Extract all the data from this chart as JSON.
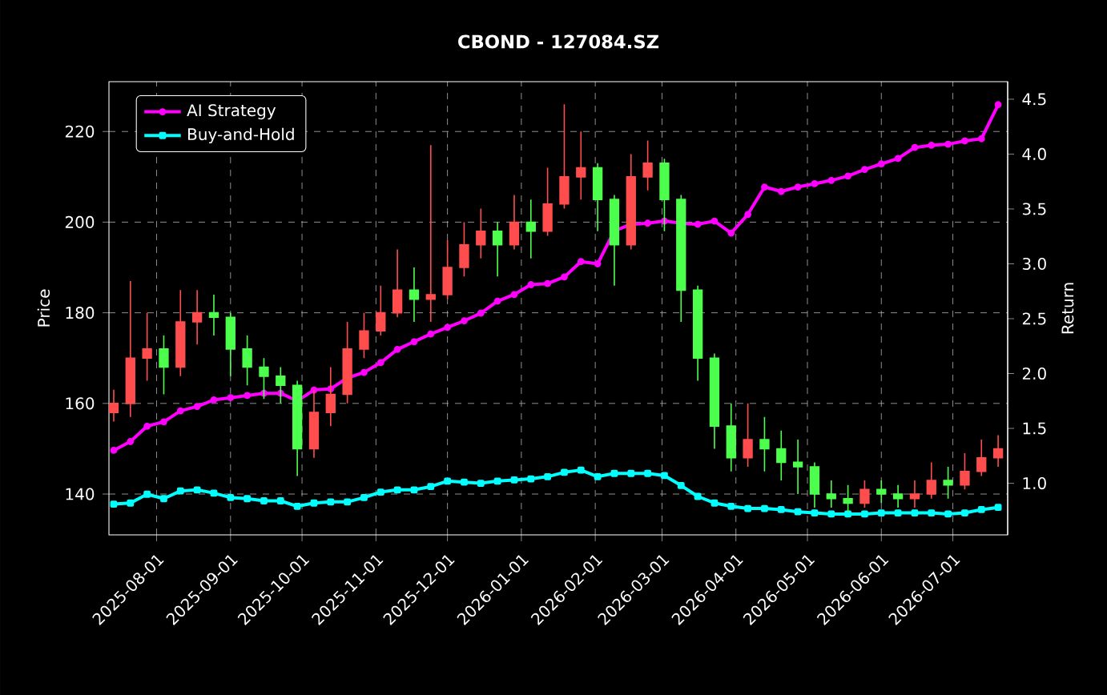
{
  "chart_data": {
    "type": "candlestick",
    "title": "CBOND - 127084.SZ",
    "ylabel": "Price",
    "y2label": "Return",
    "x": [
      "2025-07-14",
      "2025-07-21",
      "2025-07-28",
      "2025-08-04",
      "2025-08-11",
      "2025-08-18",
      "2025-08-25",
      "2025-09-01",
      "2025-09-08",
      "2025-09-15",
      "2025-09-22",
      "2025-09-29",
      "2025-10-06",
      "2025-10-13",
      "2025-10-20",
      "2025-10-27",
      "2025-11-03",
      "2025-11-10",
      "2025-11-17",
      "2025-11-24",
      "2025-12-01",
      "2025-12-08",
      "2025-12-15",
      "2025-12-22",
      "2025-12-29",
      "2026-01-05",
      "2026-01-12",
      "2026-01-19",
      "2026-01-26",
      "2026-02-02",
      "2026-02-09",
      "2026-02-16",
      "2026-02-23",
      "2026-03-02",
      "2026-03-09",
      "2026-03-16",
      "2026-03-23",
      "2026-03-30",
      "2026-04-06",
      "2026-04-13",
      "2026-04-20",
      "2026-04-27",
      "2026-05-04",
      "2026-05-11",
      "2026-05-18",
      "2026-05-25",
      "2026-06-01",
      "2026-06-08",
      "2026-06-15",
      "2026-06-22",
      "2026-06-29",
      "2026-07-06",
      "2026-07-13",
      "2026-07-20"
    ],
    "ohlc": [
      [
        158,
        163,
        156,
        160
      ],
      [
        160,
        187,
        157,
        170
      ],
      [
        170,
        180,
        165,
        172
      ],
      [
        172,
        175,
        162,
        168
      ],
      [
        168,
        185,
        166,
        178
      ],
      [
        178,
        185,
        173,
        180
      ],
      [
        180,
        184,
        175,
        179
      ],
      [
        179,
        180,
        166,
        172
      ],
      [
        172,
        175,
        164,
        168
      ],
      [
        168,
        170,
        161,
        166
      ],
      [
        166,
        168,
        160,
        164
      ],
      [
        164,
        165,
        144,
        150
      ],
      [
        150,
        163,
        148,
        158
      ],
      [
        158,
        168,
        155,
        162
      ],
      [
        162,
        178,
        160,
        172
      ],
      [
        172,
        180,
        170,
        176
      ],
      [
        176,
        186,
        175,
        180
      ],
      [
        180,
        194,
        179,
        185
      ],
      [
        185,
        190,
        178,
        183
      ],
      [
        183,
        217,
        178,
        184
      ],
      [
        184,
        196,
        183,
        190
      ],
      [
        190,
        200,
        188,
        195
      ],
      [
        195,
        203,
        192,
        198
      ],
      [
        198,
        200,
        188,
        195
      ],
      [
        195,
        206,
        194,
        200
      ],
      [
        200,
        205,
        192,
        198
      ],
      [
        198,
        212,
        197,
        204
      ],
      [
        204,
        226,
        203,
        210
      ],
      [
        210,
        220,
        205,
        212
      ],
      [
        212,
        213,
        198,
        205
      ],
      [
        205,
        206,
        186,
        195
      ],
      [
        195,
        215,
        194,
        210
      ],
      [
        210,
        218,
        207,
        213
      ],
      [
        213,
        214,
        198,
        205
      ],
      [
        205,
        206,
        178,
        185
      ],
      [
        185,
        186,
        165,
        170
      ],
      [
        170,
        171,
        150,
        155
      ],
      [
        155,
        160,
        145,
        148
      ],
      [
        148,
        160,
        146,
        152
      ],
      [
        152,
        157,
        145,
        150
      ],
      [
        150,
        154,
        143,
        147
      ],
      [
        147,
        152,
        140,
        146
      ],
      [
        146,
        147,
        137,
        140
      ],
      [
        140,
        143,
        137,
        139
      ],
      [
        139,
        142,
        136,
        138
      ],
      [
        138,
        143,
        137,
        141
      ],
      [
        141,
        143,
        138,
        140
      ],
      [
        140,
        142,
        137,
        139
      ],
      [
        139,
        143,
        137,
        140
      ],
      [
        140,
        147,
        139,
        143
      ],
      [
        143,
        146,
        139,
        142
      ],
      [
        142,
        149,
        141,
        145
      ],
      [
        145,
        152,
        144,
        148
      ],
      [
        148,
        153,
        146,
        150
      ]
    ],
    "series": [
      {
        "name": "AI Strategy",
        "type": "line",
        "axis": "y2",
        "color": "#ff00ff",
        "marker": "circle",
        "values": [
          1.3,
          1.38,
          1.52,
          1.56,
          1.66,
          1.7,
          1.76,
          1.78,
          1.8,
          1.82,
          1.82,
          1.75,
          1.85,
          1.86,
          1.96,
          2.01,
          2.1,
          2.22,
          2.29,
          2.36,
          2.42,
          2.48,
          2.55,
          2.66,
          2.72,
          2.81,
          2.82,
          2.88,
          3.02,
          3.0,
          3.3,
          3.36,
          3.37,
          3.39,
          3.37,
          3.36,
          3.39,
          3.28,
          3.45,
          3.7,
          3.66,
          3.7,
          3.73,
          3.76,
          3.8,
          3.86,
          3.91,
          3.96,
          4.06,
          4.08,
          4.09,
          4.12,
          4.14,
          4.45
        ]
      },
      {
        "name": "Buy-and-Hold",
        "type": "line",
        "axis": "y2",
        "color": "#00ffff",
        "marker": "square",
        "values": [
          0.81,
          0.82,
          0.9,
          0.86,
          0.93,
          0.94,
          0.91,
          0.87,
          0.86,
          0.84,
          0.84,
          0.79,
          0.82,
          0.83,
          0.83,
          0.87,
          0.92,
          0.94,
          0.94,
          0.97,
          1.02,
          1.01,
          1.0,
          1.02,
          1.03,
          1.04,
          1.06,
          1.1,
          1.12,
          1.06,
          1.09,
          1.09,
          1.09,
          1.07,
          0.98,
          0.88,
          0.82,
          0.79,
          0.77,
          0.77,
          0.76,
          0.74,
          0.73,
          0.72,
          0.72,
          0.72,
          0.73,
          0.73,
          0.73,
          0.73,
          0.72,
          0.73,
          0.76,
          0.78
        ]
      }
    ],
    "xlim": [
      "2025-07-12",
      "2026-07-24"
    ],
    "xticks": [
      "2025-08-01",
      "2025-09-01",
      "2025-10-01",
      "2025-11-01",
      "2025-12-01",
      "2026-01-01",
      "2026-02-01",
      "2026-03-01",
      "2026-04-01",
      "2026-05-01",
      "2026-06-01",
      "2026-07-01"
    ],
    "ylim": [
      131,
      231
    ],
    "yticks": [
      140,
      160,
      180,
      200,
      220
    ],
    "y2lim": [
      0.53,
      4.66
    ],
    "y2ticks": [
      {
        "value": 1,
        "label": "1.0"
      },
      {
        "value": 1.5,
        "label": "1.5"
      },
      {
        "value": 2,
        "label": "2.0"
      },
      {
        "value": 2.5,
        "label": "2.5"
      },
      {
        "value": 3,
        "label": "3.0"
      },
      {
        "value": 3.5,
        "label": "3.5"
      },
      {
        "value": 4,
        "label": "4.0"
      },
      {
        "value": 4.5,
        "label": "4.5"
      }
    ],
    "grid": true,
    "legend": "top left"
  }
}
